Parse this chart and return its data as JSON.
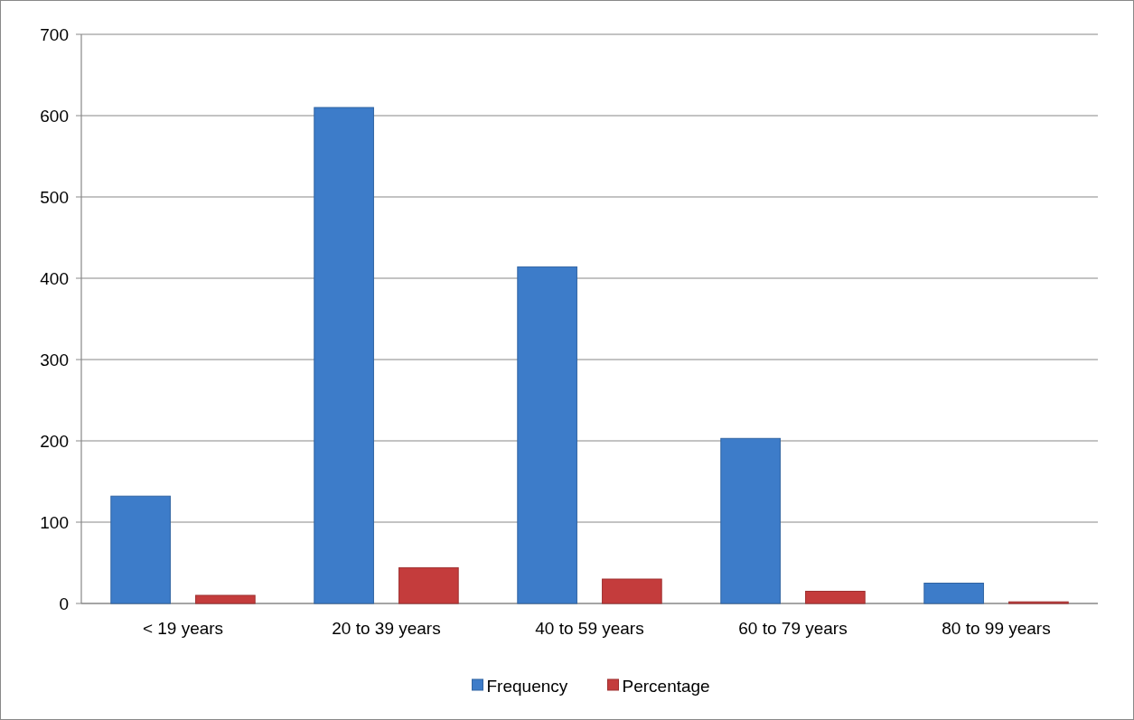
{
  "chart_data": {
    "type": "bar",
    "categories": [
      "< 19 years",
      "20 to 39 years",
      "40 to 59 years",
      "60 to 79 years",
      "80 to 99 years"
    ],
    "series": [
      {
        "name": "Frequency",
        "color": "#3d7cc9",
        "values": [
          132,
          610,
          414,
          203,
          25
        ]
      },
      {
        "name": "Percentage",
        "color": "#c43c3c",
        "values": [
          10,
          44,
          30,
          15,
          2
        ]
      }
    ],
    "ylim": [
      0,
      700
    ],
    "yticks": [
      0,
      100,
      200,
      300,
      400,
      500,
      600,
      700
    ],
    "grid": "y",
    "legend": "bottom"
  }
}
